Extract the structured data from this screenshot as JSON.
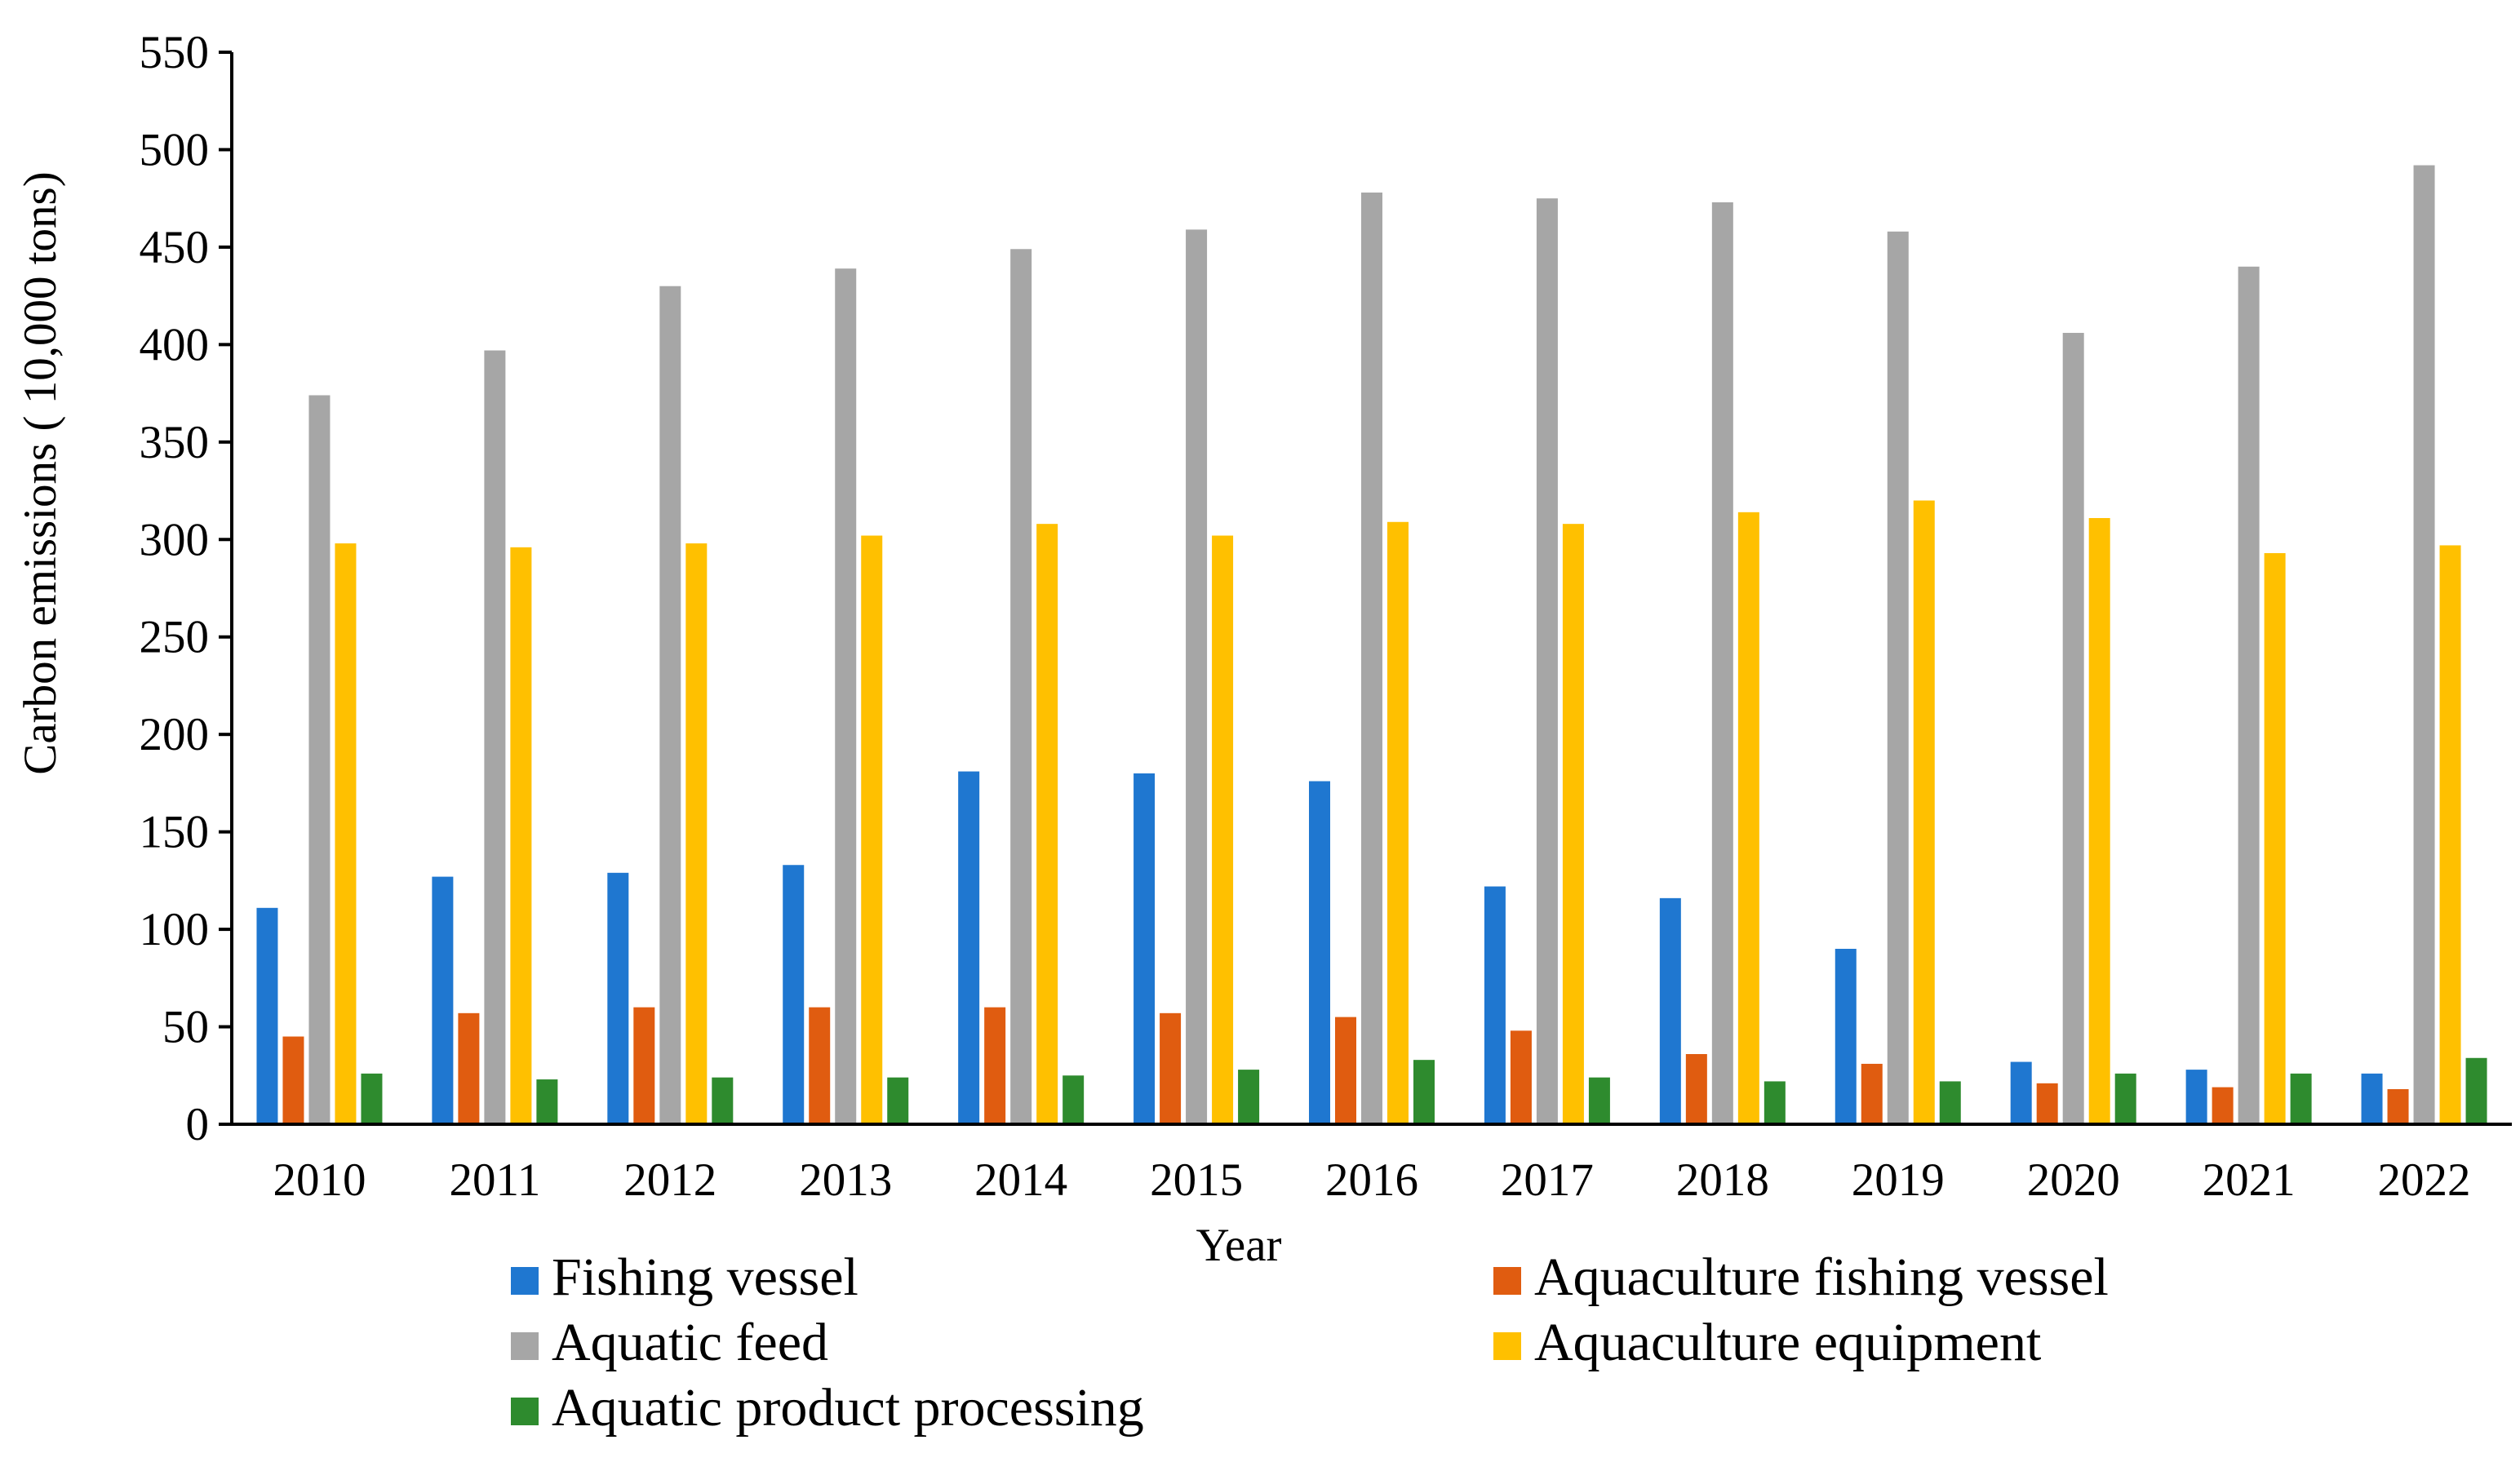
{
  "chart_data": {
    "type": "bar",
    "title": "",
    "xlabel": "Year",
    "ylabel": "Carbon emissions ( 10,000 tons)",
    "ylim": [
      0,
      550
    ],
    "yticks": [
      0,
      50,
      100,
      150,
      200,
      250,
      300,
      350,
      400,
      450,
      500,
      550
    ],
    "grid": false,
    "legend_position": "bottom",
    "categories": [
      "2010",
      "2011",
      "2012",
      "2013",
      "2014",
      "2015",
      "2016",
      "2017",
      "2018",
      "2019",
      "2020",
      "2021",
      "2022"
    ],
    "series": [
      {
        "name": "Fishing vessel",
        "color": "#1f77d0",
        "values": [
          111,
          127,
          129,
          133,
          181,
          180,
          176,
          122,
          116,
          90,
          32,
          28,
          26
        ]
      },
      {
        "name": "Aquaculture fishing vessel",
        "color": "#e05c10",
        "values": [
          45,
          57,
          60,
          60,
          60,
          57,
          55,
          48,
          36,
          31,
          21,
          19,
          18
        ]
      },
      {
        "name": "Aquatic feed",
        "color": "#a6a6a6",
        "values": [
          374,
          397,
          430,
          439,
          449,
          459,
          478,
          475,
          473,
          458,
          406,
          440,
          492
        ]
      },
      {
        "name": "Aquaculture equipment",
        "color": "#ffc000",
        "values": [
          298,
          296,
          298,
          302,
          308,
          302,
          309,
          308,
          314,
          320,
          311,
          293,
          297
        ]
      },
      {
        "name": "Aquatic product processing",
        "color": "#2e8b2e",
        "values": [
          26,
          23,
          24,
          24,
          25,
          28,
          33,
          24,
          22,
          22,
          26,
          26,
          34
        ]
      }
    ]
  }
}
